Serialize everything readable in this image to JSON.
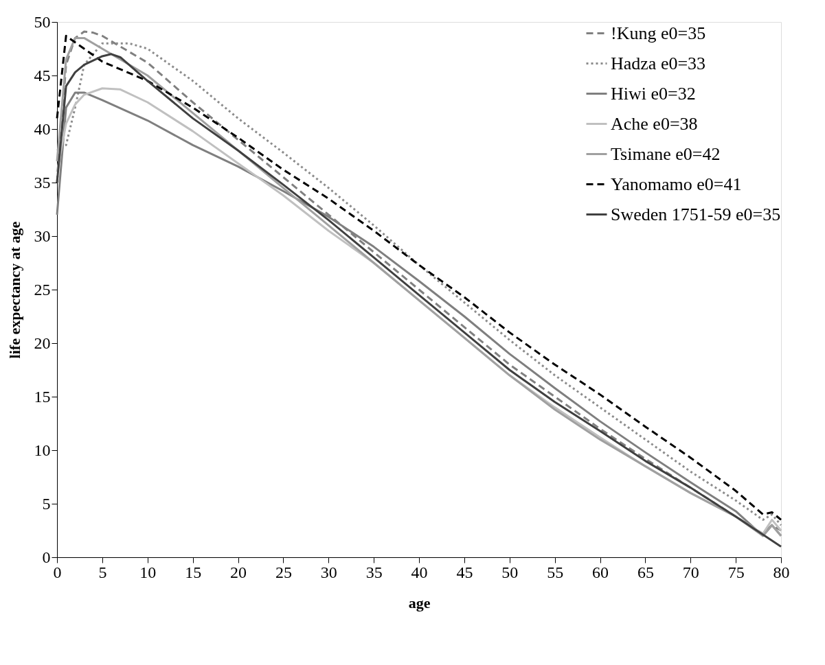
{
  "chart_data": {
    "type": "line",
    "xlabel": "age",
    "ylabel": "life expectancy at age",
    "xlim": [
      0,
      80
    ],
    "ylim": [
      0,
      50
    ],
    "xticks": [
      0,
      5,
      10,
      15,
      20,
      25,
      30,
      35,
      40,
      45,
      50,
      55,
      60,
      65,
      70,
      75,
      80
    ],
    "yticks": [
      0,
      5,
      10,
      15,
      20,
      25,
      30,
      35,
      40,
      45,
      50
    ],
    "grid": false,
    "legend": "top right",
    "marker": "none",
    "series": [
      {
        "name": "!Kung e0=35",
        "color": "#808080",
        "line_style": "dashed",
        "x": [
          0,
          1,
          2,
          3,
          4,
          5,
          10,
          15,
          20,
          25,
          30,
          35,
          40,
          45,
          50,
          55,
          60,
          65,
          70,
          75,
          78,
          79,
          80
        ],
        "values": [
          35,
          46,
          48.5,
          49.1,
          49,
          48.7,
          46.2,
          42.5,
          39,
          35.5,
          32,
          28.5,
          25,
          21.5,
          18,
          15,
          12,
          9.2,
          6.5,
          3.8,
          2.2,
          3,
          2.5
        ]
      },
      {
        "name": "Hadza e0=33",
        "color": "#8c8c8c",
        "line_style": "dotted",
        "x": [
          0,
          1,
          2,
          3,
          5,
          8,
          10,
          15,
          20,
          25,
          30,
          35,
          40,
          45,
          50,
          55,
          60,
          65,
          70,
          75,
          78,
          79,
          80
        ],
        "values": [
          38,
          38.5,
          42,
          46,
          48,
          48,
          47.5,
          44.5,
          41,
          37.8,
          34.5,
          31,
          27.3,
          23.8,
          20.3,
          17,
          14,
          11,
          8,
          5.3,
          3.5,
          4,
          3
        ]
      },
      {
        "name": "Hiwi e0=32",
        "color": "#7f7f7f",
        "line_style": "solid",
        "x": [
          0,
          1,
          2,
          3,
          5,
          10,
          15,
          20,
          25,
          30,
          35,
          40,
          45,
          50,
          55,
          60,
          65,
          70,
          75,
          78,
          79,
          80
        ],
        "values": [
          32,
          42,
          43.4,
          43.4,
          42.7,
          40.8,
          38.5,
          36.5,
          34.2,
          31.8,
          29,
          25.8,
          22.5,
          19,
          15.8,
          12.7,
          9.8,
          7,
          4.3,
          2,
          3,
          2
        ]
      },
      {
        "name": "Ache e0=38",
        "color": "#c0c0c0",
        "line_style": "solid",
        "x": [
          0,
          1,
          2,
          3,
          5,
          7,
          10,
          15,
          20,
          25,
          30,
          35,
          40,
          45,
          50,
          55,
          60,
          65,
          70,
          75,
          78,
          79,
          80
        ],
        "values": [
          36,
          40.5,
          42.3,
          43.2,
          43.8,
          43.7,
          42.5,
          39.8,
          36.8,
          33.8,
          30.5,
          27.5,
          24,
          20.5,
          17,
          14,
          11.2,
          8.5,
          6,
          3.8,
          2.2,
          3.5,
          2.5
        ]
      },
      {
        "name": "Tsimane e0=42",
        "color": "#a0a0a0",
        "line_style": "solid",
        "x": [
          0,
          1,
          2,
          3,
          5,
          10,
          15,
          20,
          25,
          30,
          35,
          40,
          45,
          50,
          55,
          60,
          65,
          70,
          75,
          78,
          79,
          80
        ],
        "values": [
          37,
          46.5,
          48.5,
          48.5,
          47.5,
          45,
          41.5,
          38,
          34.5,
          31,
          27.5,
          24,
          20.5,
          17,
          13.8,
          11,
          8.5,
          6,
          3.8,
          2,
          3,
          2
        ]
      },
      {
        "name": "Yanomamo e0=41",
        "color": "#000000",
        "line_style": "dashed",
        "x": [
          0,
          1,
          5,
          10,
          15,
          20,
          25,
          30,
          35,
          40,
          45,
          50,
          55,
          60,
          65,
          70,
          75,
          78,
          79,
          80
        ],
        "values": [
          41,
          48.7,
          46.3,
          44.5,
          42,
          39.2,
          36.2,
          33.5,
          30.5,
          27.3,
          24.3,
          21,
          18,
          15.2,
          12.2,
          9.3,
          6.2,
          4,
          4.2,
          3.5
        ]
      },
      {
        "name": "Sweden 1751-59 e0=35",
        "color": "#404040",
        "line_style": "solid",
        "x": [
          0,
          1,
          2,
          3,
          5,
          6,
          7,
          10,
          15,
          20,
          25,
          30,
          35,
          40,
          45,
          50,
          55,
          60,
          65,
          70,
          75,
          80
        ],
        "values": [
          35,
          44,
          45.3,
          46,
          46.8,
          47,
          46.7,
          44.5,
          41,
          38,
          34.8,
          31.5,
          28,
          24.5,
          21,
          17.5,
          14.5,
          11.8,
          9,
          6.5,
          3.8,
          1
        ]
      }
    ]
  }
}
